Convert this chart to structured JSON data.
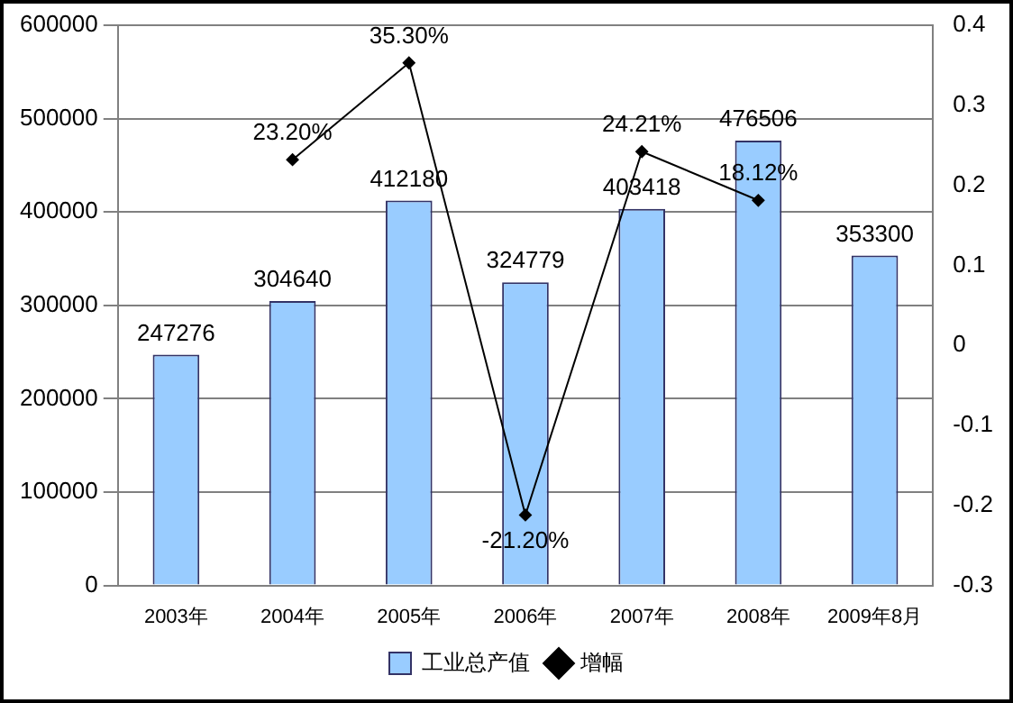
{
  "chart_data": {
    "type": "bar",
    "categories": [
      "2003年",
      "2004年",
      "2005年",
      "2006年",
      "2007年",
      "2008年",
      "2009年8月"
    ],
    "series": [
      {
        "name": "工业总产值",
        "color": "#99ccff",
        "values": [
          247276,
          304640,
          412180,
          324779,
          403418,
          476506,
          353300
        ],
        "value_labels": [
          "247276",
          "304640",
          "412180",
          "324779",
          "403418",
          "476506",
          "353300"
        ]
      },
      {
        "name": "增幅",
        "type": "line",
        "axis": "y2",
        "color": "#000000",
        "marker": "diamond",
        "values": [
          null,
          0.232,
          0.353,
          -0.212,
          0.2421,
          0.1812,
          null
        ],
        "value_labels": [
          null,
          "23.20%",
          "35.30%",
          "-21.20%",
          "24.21%",
          "18.12%",
          null
        ]
      }
    ],
    "ylim": [
      0,
      600000
    ],
    "yticks": [
      0,
      100000,
      200000,
      300000,
      400000,
      500000,
      600000
    ],
    "y2lim": [
      -0.3,
      0.4
    ],
    "y2ticks": [
      -0.3,
      -0.2,
      -0.1,
      0,
      0.1,
      0.2,
      0.3,
      0.4
    ],
    "grid": "y",
    "legend": "bottom"
  }
}
